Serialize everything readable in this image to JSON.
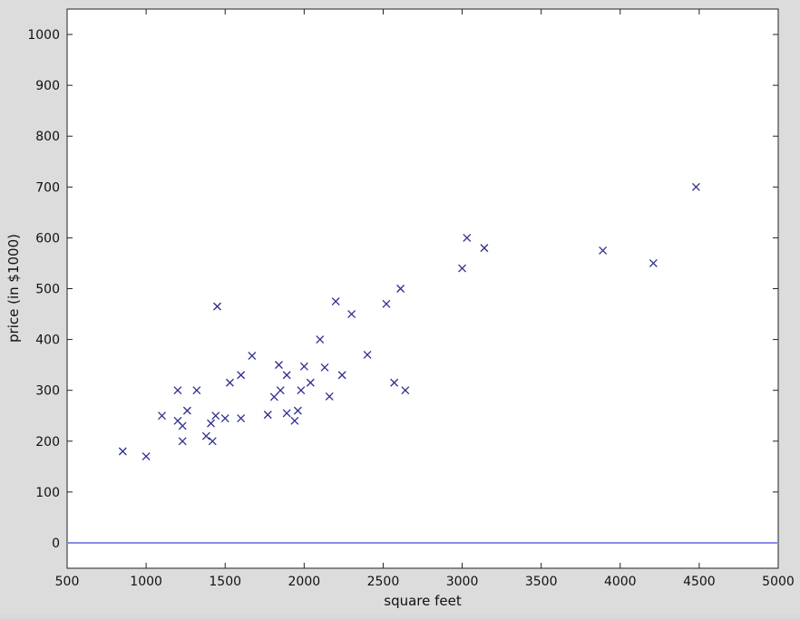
{
  "chart_data": {
    "type": "scatter",
    "title": "",
    "xlabel": "square feet",
    "ylabel": "price (in $1000)",
    "xlim": [
      500,
      5000
    ],
    "ylim": [
      -50,
      1050
    ],
    "xticks": [
      "500",
      "1000",
      "1500",
      "2000",
      "2500",
      "3000",
      "3500",
      "4000",
      "4500",
      "5000"
    ],
    "yticks": [
      "0",
      "100",
      "200",
      "300",
      "400",
      "500",
      "600",
      "700",
      "800",
      "900",
      "1000"
    ],
    "grid": false,
    "marker": "x",
    "marker_color": "#2d2d8f",
    "baseline": {
      "y": 0,
      "color": "#8a8ae6"
    },
    "x": [
      852,
      1000,
      1100,
      1200,
      1200,
      1230,
      1230,
      1260,
      1320,
      1380,
      1410,
      1420,
      1440,
      1450,
      1500,
      1530,
      1600,
      1600,
      1670,
      1770,
      1810,
      1840,
      1850,
      1890,
      1890,
      1940,
      1960,
      1980,
      2000,
      2040,
      2100,
      2130,
      2160,
      2200,
      2240,
      2300,
      2400,
      2520,
      2570,
      2610,
      2640,
      3000,
      3030,
      3140,
      3890,
      4210,
      4480
    ],
    "y": [
      180,
      170,
      250,
      300,
      240,
      230,
      200,
      260,
      300,
      210,
      235,
      200,
      250,
      465,
      245,
      315,
      330,
      245,
      368,
      252,
      287,
      350,
      300,
      255,
      330,
      240,
      260,
      300,
      347,
      315,
      400,
      345,
      288,
      475,
      330,
      450,
      370,
      470,
      315,
      500,
      300,
      540,
      600,
      580,
      575,
      550,
      700
    ]
  }
}
